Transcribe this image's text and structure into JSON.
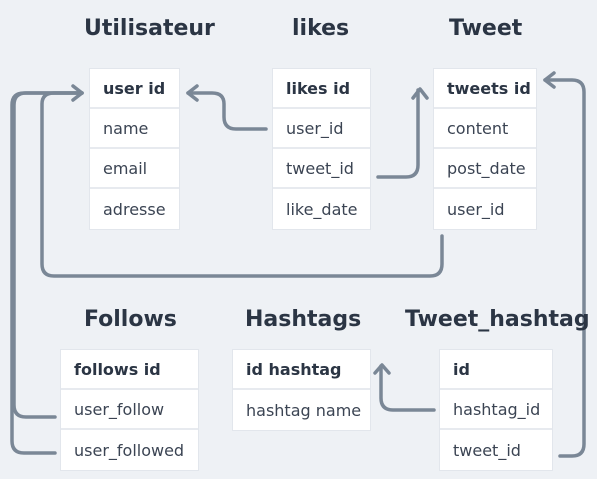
{
  "tables": {
    "utilisateur": {
      "title": "Utilisateur",
      "fields": [
        "user id",
        "name",
        "email",
        "adresse"
      ]
    },
    "likes": {
      "title": "likes",
      "fields": [
        "likes id",
        "user_id",
        "tweet_id",
        "like_date"
      ]
    },
    "tweet": {
      "title": "Tweet",
      "fields": [
        "tweets id",
        "content",
        "post_date",
        "user_id"
      ]
    },
    "follows": {
      "title": "Follows",
      "fields": [
        "follows id",
        "user_follow",
        "user_followed"
      ]
    },
    "hashtags": {
      "title": "Hashtags",
      "fields": [
        "id hashtag",
        "hashtag name"
      ]
    },
    "tweet_hashtag": {
      "title": "Tweet_hashtag",
      "fields": [
        "id",
        "hashtag_id",
        "tweet_id"
      ]
    }
  },
  "colors": {
    "background": "#eef1f5",
    "connector": "#7a8796",
    "title": "#2b3544"
  }
}
